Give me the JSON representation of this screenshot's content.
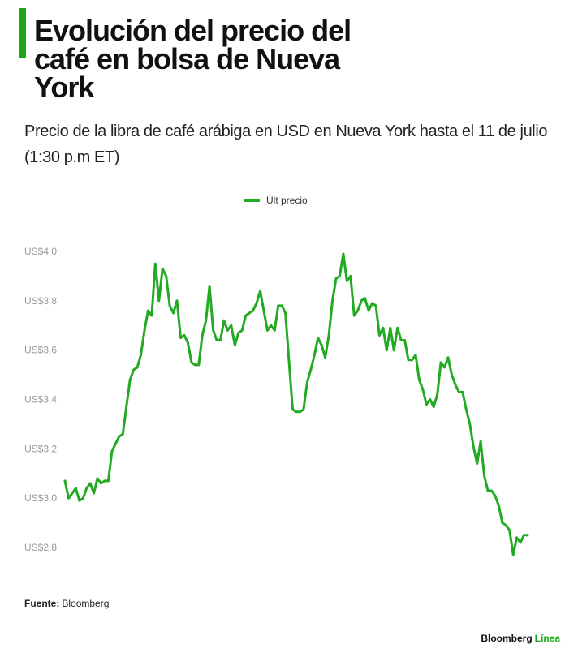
{
  "header": {
    "title": "Evolución del precio del café en bolsa de Nueva York",
    "subtitle": "Precio de la libra de café arábiga en USD en Nueva York hasta el 11 de julio (1:30 p.m ET)"
  },
  "footer": {
    "source_label": "Fuente:",
    "source_value": "Bloomberg",
    "brand_main": "Bloomberg",
    "brand_accent": "Línea"
  },
  "colors": {
    "accent": "#1aa81a",
    "line": "#22aa22",
    "text": "#111111",
    "tick_text": "#999999"
  },
  "chart_data": {
    "type": "line",
    "title": "Evolución del precio del café en bolsa de Nueva York",
    "subtitle": "Precio de la libra de café arábiga en USD en Nueva York hasta el 11 de julio (1:30 p.m ET)",
    "xlabel": "",
    "ylabel": "",
    "ylim": [
      2.8,
      4.0
    ],
    "y_ticks": [
      2.8,
      3.0,
      3.2,
      3.4,
      3.6,
      3.8,
      4.0
    ],
    "y_tick_labels": [
      "US$2,8",
      "US$3,0",
      "US$3,2",
      "US$3,4",
      "US$3,6",
      "US$3,8",
      "US$4,0"
    ],
    "grid": false,
    "legend_position": "top-center",
    "series": [
      {
        "name": "Últ precio",
        "values": [
          3.07,
          3.0,
          3.02,
          3.04,
          2.99,
          3.0,
          3.04,
          3.06,
          3.02,
          3.08,
          3.06,
          3.07,
          3.07,
          3.19,
          3.22,
          3.25,
          3.26,
          3.37,
          3.48,
          3.52,
          3.53,
          3.58,
          3.68,
          3.76,
          3.74,
          3.95,
          3.8,
          3.93,
          3.9,
          3.78,
          3.75,
          3.8,
          3.65,
          3.66,
          3.63,
          3.55,
          3.54,
          3.54,
          3.66,
          3.72,
          3.86,
          3.68,
          3.64,
          3.64,
          3.72,
          3.68,
          3.7,
          3.62,
          3.67,
          3.68,
          3.74,
          3.75,
          3.76,
          3.79,
          3.84,
          3.76,
          3.68,
          3.7,
          3.68,
          3.78,
          3.78,
          3.75,
          3.55,
          3.36,
          3.35,
          3.35,
          3.36,
          3.47,
          3.52,
          3.58,
          3.65,
          3.62,
          3.57,
          3.66,
          3.8,
          3.89,
          3.9,
          3.99,
          3.88,
          3.9,
          3.74,
          3.76,
          3.8,
          3.81,
          3.76,
          3.79,
          3.78,
          3.66,
          3.69,
          3.6,
          3.69,
          3.6,
          3.69,
          3.64,
          3.64,
          3.56,
          3.56,
          3.58,
          3.48,
          3.44,
          3.38,
          3.4,
          3.37,
          3.42,
          3.55,
          3.53,
          3.57,
          3.5,
          3.46,
          3.43,
          3.43,
          3.36,
          3.3,
          3.21,
          3.14,
          3.23,
          3.09,
          3.03,
          3.03,
          3.01,
          2.97,
          2.9,
          2.89,
          2.87,
          2.77,
          2.84,
          2.82,
          2.85,
          2.85
        ]
      }
    ]
  }
}
